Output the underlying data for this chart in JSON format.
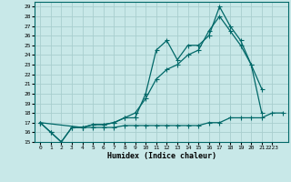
{
  "title": "",
  "xlabel": "Humidex (Indice chaleur)",
  "bg_color": "#c8e8e8",
  "grid_color": "#a8cece",
  "line_color": "#006868",
  "xlim": [
    -0.5,
    23.5
  ],
  "ylim": [
    15,
    29.5
  ],
  "xtick_labels": [
    "0",
    "1",
    "2",
    "3",
    "4",
    "5",
    "6",
    "7",
    "8",
    "9",
    "10",
    "11",
    "12",
    "13",
    "14",
    "15",
    "16",
    "17",
    "18",
    "19",
    "20",
    "21",
    "2223"
  ],
  "xtick_positions": [
    0,
    1,
    2,
    3,
    4,
    5,
    6,
    7,
    8,
    9,
    10,
    11,
    12,
    13,
    14,
    15,
    16,
    17,
    18,
    19,
    20,
    21,
    22
  ],
  "yticks": [
    15,
    16,
    17,
    18,
    19,
    20,
    21,
    22,
    23,
    24,
    25,
    26,
    27,
    28,
    29
  ],
  "line1_x": [
    0,
    1,
    2,
    3,
    4,
    5,
    6,
    7,
    8,
    9,
    10,
    11,
    12,
    13,
    14,
    15,
    16,
    17,
    18,
    19,
    20,
    21
  ],
  "line1_y": [
    17,
    16,
    15,
    16.5,
    16.5,
    16.8,
    16.8,
    17,
    17.5,
    17.5,
    20,
    24.5,
    25.5,
    23.5,
    25,
    25,
    26,
    29,
    27,
    25.5,
    23,
    20.5
  ],
  "line2_x": [
    0,
    1,
    2,
    3,
    4,
    5,
    6,
    7,
    8,
    9,
    10,
    11,
    12,
    13,
    14,
    15,
    16,
    17,
    18,
    19,
    20,
    21
  ],
  "line2_y": [
    17,
    16,
    15,
    16.5,
    16.5,
    16.8,
    16.8,
    17,
    17.5,
    18,
    19.5,
    21.5,
    22.5,
    23,
    24,
    24.5,
    26.5,
    28,
    26.5,
    25,
    23,
    18
  ],
  "line3_x": [
    0,
    4,
    5,
    6,
    7,
    8,
    9,
    10,
    11,
    12,
    13,
    14,
    15,
    16,
    17,
    18,
    19,
    20,
    21,
    22,
    23
  ],
  "line3_y": [
    17,
    16.5,
    16.5,
    16.5,
    16.5,
    16.7,
    16.7,
    16.7,
    16.7,
    16.7,
    16.7,
    16.7,
    16.7,
    17,
    17,
    17.5,
    17.5,
    17.5,
    17.5,
    18,
    18
  ]
}
